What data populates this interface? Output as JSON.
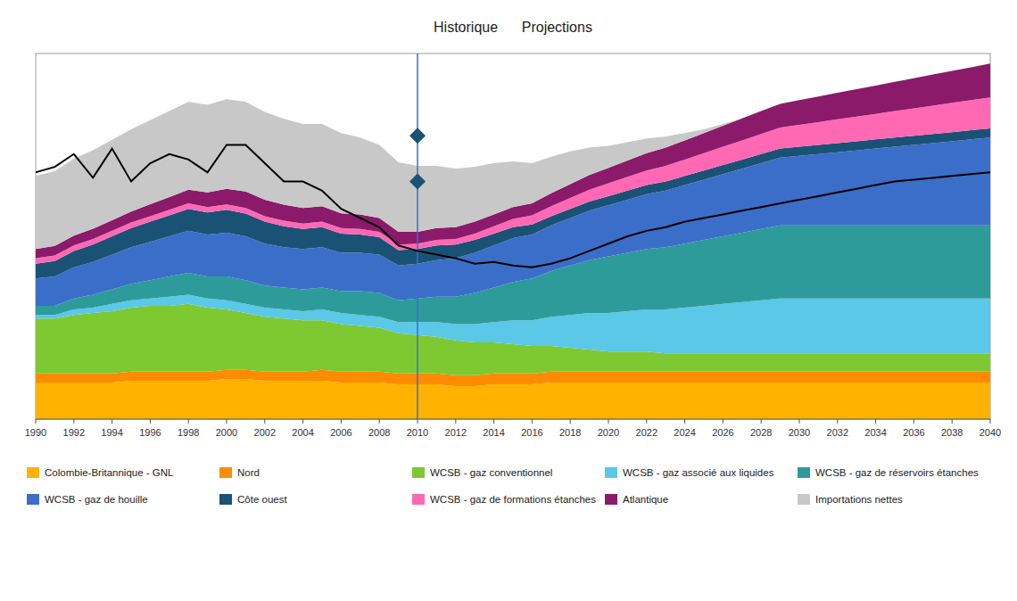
{
  "chart_data": {
    "type": "area",
    "title": "Historique      Projections",
    "stacked": true,
    "grid": false,
    "legend": "bottom",
    "tick_labels": "x",
    "x": [
      1990,
      1991,
      1992,
      1993,
      1994,
      1995,
      1996,
      1997,
      1998,
      1999,
      2000,
      2001,
      2002,
      2003,
      2004,
      2005,
      2006,
      2007,
      2008,
      2009,
      2010,
      2011,
      2012,
      2013,
      2014,
      2015,
      2016,
      2017,
      2018,
      2019,
      2020,
      2021,
      2022,
      2023,
      2024,
      2025,
      2026,
      2027,
      2028,
      2029,
      2030,
      2031,
      2032,
      2033,
      2034,
      2035,
      2036,
      2037,
      2038,
      2039,
      2040
    ],
    "xlim": [
      1990,
      2040
    ],
    "xticks": [
      1990,
      1992,
      1994,
      1996,
      1998,
      2000,
      2002,
      2004,
      2006,
      2008,
      2010,
      2012,
      2014,
      2016,
      2018,
      2020,
      2022,
      2024,
      2026,
      2028,
      2030,
      2032,
      2034,
      2036,
      2038,
      2040
    ],
    "ylim": [
      0,
      20
    ],
    "series": [
      {
        "name": "Colombie-Britannique - GNL",
        "color": "#FFB300",
        "values": [
          2.0,
          2.0,
          2.0,
          2.0,
          2.0,
          2.1,
          2.1,
          2.1,
          2.1,
          2.1,
          2.2,
          2.2,
          2.1,
          2.1,
          2.1,
          2.1,
          2.0,
          2.0,
          2.0,
          1.9,
          1.9,
          1.9,
          1.8,
          1.8,
          1.9,
          1.9,
          1.9,
          2.0,
          2.0,
          2.0,
          2.0,
          2.0,
          2.0,
          2.0,
          2.0,
          2.0,
          2.0,
          2.0,
          2.0,
          2.0,
          2.0,
          2.0,
          2.0,
          2.0,
          2.0,
          2.0,
          2.0,
          2.0,
          2.0,
          2.0,
          2.0
        ]
      },
      {
        "name": "Nord",
        "color": "#FF8C00",
        "values": [
          0.5,
          0.5,
          0.5,
          0.5,
          0.5,
          0.5,
          0.5,
          0.5,
          0.5,
          0.5,
          0.5,
          0.5,
          0.5,
          0.5,
          0.5,
          0.6,
          0.6,
          0.6,
          0.6,
          0.6,
          0.6,
          0.6,
          0.6,
          0.6,
          0.6,
          0.6,
          0.6,
          0.6,
          0.6,
          0.6,
          0.6,
          0.6,
          0.6,
          0.6,
          0.6,
          0.6,
          0.6,
          0.6,
          0.6,
          0.6,
          0.6,
          0.6,
          0.6,
          0.6,
          0.6,
          0.6,
          0.6,
          0.6,
          0.6,
          0.6,
          0.6
        ]
      },
      {
        "name": "WCSB - gaz conventionnel",
        "color": "#7EC832",
        "values": [
          3.0,
          3.0,
          3.2,
          3.3,
          3.4,
          3.5,
          3.6,
          3.6,
          3.7,
          3.5,
          3.3,
          3.1,
          3.0,
          2.9,
          2.8,
          2.7,
          2.6,
          2.5,
          2.4,
          2.2,
          2.1,
          2.0,
          1.9,
          1.8,
          1.7,
          1.6,
          1.5,
          1.4,
          1.3,
          1.2,
          1.1,
          1.1,
          1.1,
          1.0,
          1.0,
          1.0,
          1.0,
          1.0,
          1.0,
          1.0,
          1.0,
          1.0,
          1.0,
          1.0,
          1.0,
          1.0,
          1.0,
          1.0,
          1.0,
          1.0,
          1.0
        ]
      },
      {
        "name": "WCSB - gaz associé aux liquides",
        "color": "#5BC8E8",
        "values": [
          0.2,
          0.2,
          0.3,
          0.3,
          0.4,
          0.4,
          0.4,
          0.5,
          0.5,
          0.5,
          0.5,
          0.5,
          0.5,
          0.5,
          0.5,
          0.6,
          0.6,
          0.6,
          0.6,
          0.6,
          0.7,
          0.8,
          0.9,
          1.0,
          1.1,
          1.3,
          1.4,
          1.6,
          1.8,
          2.0,
          2.1,
          2.2,
          2.3,
          2.4,
          2.5,
          2.6,
          2.7,
          2.8,
          2.9,
          3.0,
          3.0,
          3.0,
          3.0,
          3.0,
          3.0,
          3.0,
          3.0,
          3.0,
          3.0,
          3.0,
          3.0
        ]
      },
      {
        "name": "WCSB - gaz de réservoirs étanches",
        "color": "#2E9B9B",
        "values": [
          0.5,
          0.5,
          0.6,
          0.7,
          0.8,
          0.9,
          1.0,
          1.1,
          1.2,
          1.2,
          1.3,
          1.3,
          1.2,
          1.2,
          1.2,
          1.2,
          1.2,
          1.3,
          1.3,
          1.2,
          1.3,
          1.4,
          1.5,
          1.7,
          1.9,
          2.1,
          2.3,
          2.5,
          2.7,
          2.9,
          3.1,
          3.2,
          3.3,
          3.4,
          3.5,
          3.6,
          3.7,
          3.8,
          3.9,
          4.0,
          4.0,
          4.0,
          4.0,
          4.0,
          4.0,
          4.0,
          4.0,
          4.0,
          4.0,
          4.0,
          4.0
        ]
      },
      {
        "name": "WCSB - gaz de houille",
        "color": "#3B6EC8",
        "values": [
          1.5,
          1.6,
          1.7,
          1.8,
          1.9,
          2.0,
          2.1,
          2.2,
          2.3,
          2.3,
          2.4,
          2.4,
          2.3,
          2.2,
          2.2,
          2.2,
          2.1,
          2.1,
          2.1,
          1.9,
          1.9,
          2.0,
          2.1,
          2.2,
          2.3,
          2.4,
          2.4,
          2.5,
          2.6,
          2.7,
          2.8,
          2.9,
          3.0,
          3.1,
          3.2,
          3.3,
          3.4,
          3.5,
          3.6,
          3.7,
          3.8,
          3.9,
          4.0,
          4.1,
          4.2,
          4.3,
          4.4,
          4.5,
          4.6,
          4.7,
          4.8
        ]
      },
      {
        "name": "Côte ouest",
        "color": "#1A5276",
        "values": [
          0.8,
          0.85,
          0.9,
          0.95,
          1.0,
          1.05,
          1.1,
          1.15,
          1.2,
          1.2,
          1.25,
          1.25,
          1.2,
          1.15,
          1.1,
          1.1,
          1.05,
          1.0,
          0.95,
          0.85,
          0.8,
          0.8,
          0.75,
          0.7,
          0.65,
          0.6,
          0.55,
          0.5,
          0.5,
          0.5,
          0.5,
          0.5,
          0.5,
          0.5,
          0.5,
          0.5,
          0.5,
          0.5,
          0.5,
          0.5,
          0.5,
          0.5,
          0.5,
          0.5,
          0.5,
          0.5,
          0.5,
          0.5,
          0.5,
          0.5,
          0.5
        ]
      },
      {
        "name": "WCSB - gaz de formations étanches",
        "color": "#FF69B4",
        "values": [
          0.3,
          0.3,
          0.3,
          0.3,
          0.3,
          0.3,
          0.3,
          0.3,
          0.3,
          0.3,
          0.3,
          0.3,
          0.3,
          0.3,
          0.3,
          0.3,
          0.3,
          0.3,
          0.3,
          0.3,
          0.3,
          0.3,
          0.3,
          0.35,
          0.4,
          0.45,
          0.5,
          0.55,
          0.6,
          0.65,
          0.7,
          0.75,
          0.8,
          0.85,
          0.9,
          0.95,
          1.0,
          1.05,
          1.1,
          1.15,
          1.2,
          1.25,
          1.3,
          1.35,
          1.4,
          1.45,
          1.5,
          1.55,
          1.6,
          1.65,
          1.7
        ]
      },
      {
        "name": "Atlantique",
        "color": "#8B1A6B",
        "values": [
          0.5,
          0.52,
          0.54,
          0.56,
          0.58,
          0.6,
          0.65,
          0.7,
          0.75,
          0.8,
          0.85,
          0.9,
          0.9,
          0.88,
          0.85,
          0.85,
          0.8,
          0.8,
          0.75,
          0.7,
          0.65,
          0.65,
          0.65,
          0.65,
          0.65,
          0.65,
          0.65,
          0.7,
          0.75,
          0.8,
          0.85,
          0.9,
          0.95,
          1.0,
          1.05,
          1.1,
          1.15,
          1.2,
          1.25,
          1.3,
          1.35,
          1.4,
          1.45,
          1.5,
          1.55,
          1.6,
          1.65,
          1.7,
          1.75,
          1.8,
          1.85
        ]
      },
      {
        "name": "Importations nettes",
        "color": "#C8C8C8",
        "values": [
          4.0,
          4.1,
          4.2,
          4.3,
          4.4,
          4.5,
          4.6,
          4.7,
          4.8,
          4.8,
          4.9,
          4.9,
          4.8,
          4.7,
          4.6,
          4.5,
          4.4,
          4.2,
          4.0,
          3.8,
          3.6,
          3.4,
          3.2,
          3.0,
          2.8,
          2.5,
          2.2,
          2.0,
          1.8,
          1.5,
          1.2,
          1.0,
          0.8,
          0.6,
          0.4,
          0.2,
          0.1,
          0.0,
          0.0,
          0.0,
          0.0,
          0.0,
          0.0,
          0.0,
          0.0,
          0.0,
          0.0,
          0.0,
          0.0,
          0.0,
          0.0
        ]
      },
      {
        "type": "line",
        "color": "#000000",
        "values": [
          13.5,
          13.8,
          14.5,
          13.2,
          14.8,
          13.0,
          14.0,
          14.5,
          14.2,
          13.5,
          15.0,
          15.0,
          14.0,
          13.0,
          13.0,
          12.5,
          11.5,
          11.0,
          10.5,
          9.5,
          9.2,
          9.0,
          8.8,
          8.5,
          8.6,
          8.4,
          8.3,
          8.5,
          8.8,
          9.2,
          9.6,
          10.0,
          10.3,
          10.5,
          10.8,
          11.0,
          11.2,
          11.4,
          11.6,
          11.8,
          12.0,
          12.2,
          12.4,
          12.6,
          12.8,
          13.0,
          13.1,
          13.2,
          13.3,
          13.4,
          13.5
        ]
      },
      {
        "type": "scatter",
        "marker": "diamond",
        "color": "#1A5276",
        "x": [
          2010,
          2010
        ],
        "values": [
          15.5,
          13.0
        ]
      }
    ],
    "vline": {
      "x": 2010,
      "color": "#3B6EC8"
    }
  }
}
